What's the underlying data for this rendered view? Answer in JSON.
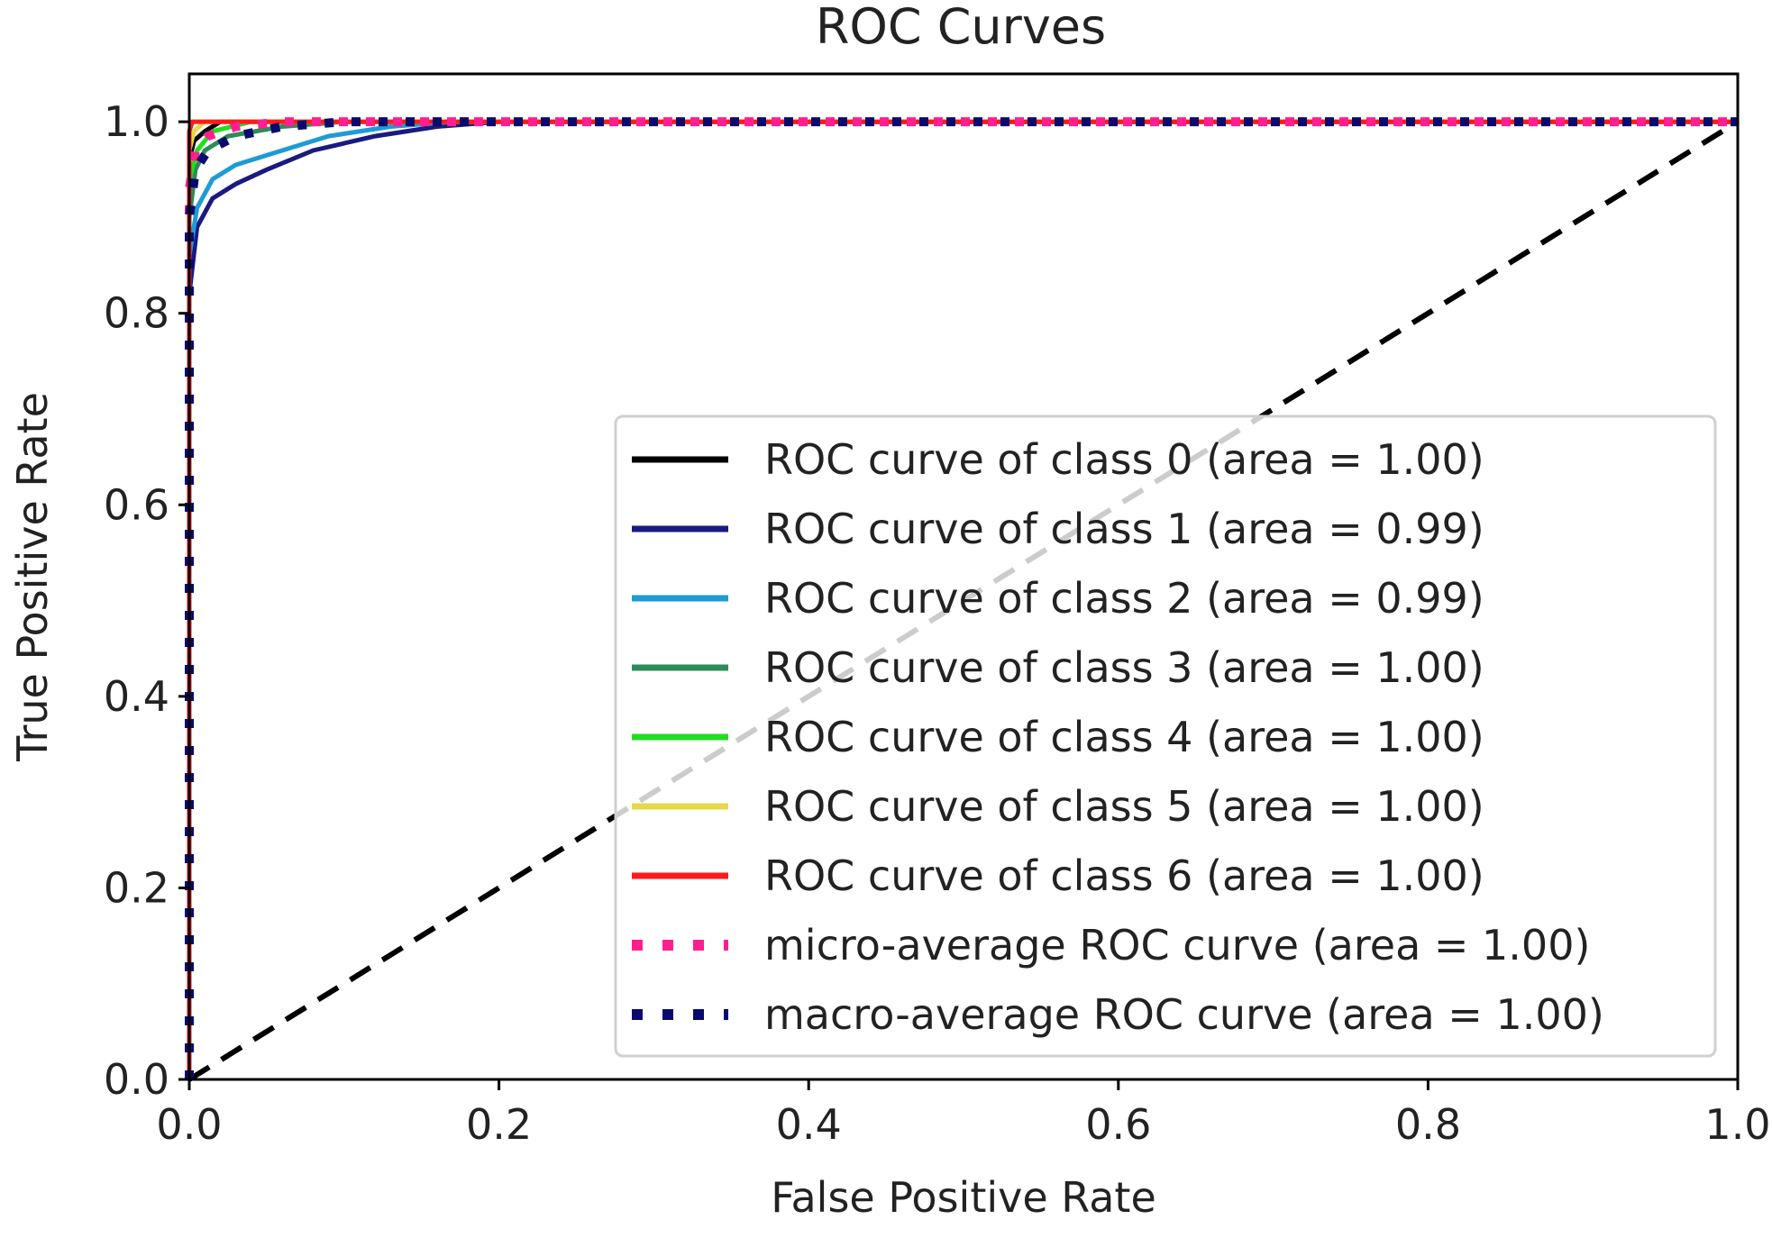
{
  "chart_data": {
    "type": "line",
    "title": "ROC Curves",
    "xlabel": "False Positive Rate",
    "ylabel": "True Positive Rate",
    "xlim": [
      0.0,
      1.0
    ],
    "ylim": [
      0.0,
      1.05
    ],
    "x_ticks": [
      "0.0",
      "0.2",
      "0.4",
      "0.6",
      "0.8",
      "1.0"
    ],
    "y_ticks": [
      "0.0",
      "0.2",
      "0.4",
      "0.6",
      "0.8",
      "1.0"
    ],
    "x_tick_values": [
      0.0,
      0.2,
      0.4,
      0.6,
      0.8,
      1.0
    ],
    "y_tick_values": [
      0.0,
      0.2,
      0.4,
      0.6,
      0.8,
      1.0
    ],
    "grid": false,
    "legend_position": "lower-right",
    "series": [
      {
        "name": "ROC curve of class 0 (area = 1.00)",
        "color": "#000000",
        "style": "solid",
        "x": [
          0.0,
          0.0,
          0.003,
          0.01,
          0.02,
          0.05,
          1.0
        ],
        "y": [
          0.0,
          0.96,
          0.98,
          0.99,
          1.0,
          1.0,
          1.0
        ]
      },
      {
        "name": "ROC curve of class 1 (area = 0.99)",
        "color": "#1a1a80",
        "style": "solid",
        "x": [
          0.0,
          0.0,
          0.005,
          0.015,
          0.03,
          0.05,
          0.08,
          0.12,
          0.16,
          0.2,
          1.0
        ],
        "y": [
          0.0,
          0.82,
          0.89,
          0.92,
          0.935,
          0.95,
          0.97,
          0.985,
          0.995,
          1.0,
          1.0
        ]
      },
      {
        "name": "ROC curve of class 2 (area = 0.99)",
        "color": "#1f9bd6",
        "style": "solid",
        "x": [
          0.0,
          0.0,
          0.005,
          0.015,
          0.03,
          0.06,
          0.09,
          0.13,
          0.17,
          1.0
        ],
        "y": [
          0.0,
          0.86,
          0.91,
          0.94,
          0.955,
          0.97,
          0.985,
          0.995,
          1.0,
          1.0
        ]
      },
      {
        "name": "ROC curve of class 3 (area = 1.00)",
        "color": "#2e8b57",
        "style": "solid",
        "x": [
          0.0,
          0.0,
          0.004,
          0.01,
          0.025,
          0.06,
          0.1,
          1.0
        ],
        "y": [
          0.0,
          0.9,
          0.95,
          0.97,
          0.985,
          0.995,
          1.0,
          1.0
        ]
      },
      {
        "name": "ROC curve of class 4 (area = 1.00)",
        "color": "#22dd22",
        "style": "solid",
        "x": [
          0.0,
          0.0,
          0.005,
          0.015,
          0.04,
          1.0
        ],
        "y": [
          0.0,
          0.94,
          0.97,
          0.99,
          1.0,
          1.0
        ]
      },
      {
        "name": "ROC curve of class 5 (area = 1.00)",
        "color": "#e6d84a",
        "style": "solid",
        "x": [
          0.0,
          0.0,
          0.003,
          0.01,
          1.0
        ],
        "y": [
          0.0,
          0.97,
          0.99,
          1.0,
          1.0
        ]
      },
      {
        "name": "ROC curve of class 6 (area = 1.00)",
        "color": "#ff1a1a",
        "style": "solid",
        "x": [
          0.0,
          0.0,
          0.002,
          1.0
        ],
        "y": [
          0.0,
          0.99,
          1.0,
          1.0
        ]
      },
      {
        "name": "micro-average ROC curve (area = 1.00)",
        "color": "#ff1f8f",
        "style": "dotted",
        "x": [
          0.0,
          0.0,
          0.004,
          0.012,
          0.03,
          0.06,
          1.0
        ],
        "y": [
          0.0,
          0.93,
          0.97,
          0.985,
          0.995,
          1.0,
          1.0
        ]
      },
      {
        "name": "macro-average ROC curve (area = 1.00)",
        "color": "#0a0a6e",
        "style": "dotted",
        "x": [
          0.0,
          0.0,
          0.004,
          0.012,
          0.03,
          0.06,
          0.1,
          1.0
        ],
        "y": [
          0.0,
          0.9,
          0.95,
          0.97,
          0.985,
          0.995,
          1.0,
          1.0
        ]
      }
    ],
    "reference_line": {
      "x": [
        0.0,
        1.0
      ],
      "y": [
        0.0,
        1.0
      ],
      "color": "#000000",
      "style": "dashed"
    }
  }
}
